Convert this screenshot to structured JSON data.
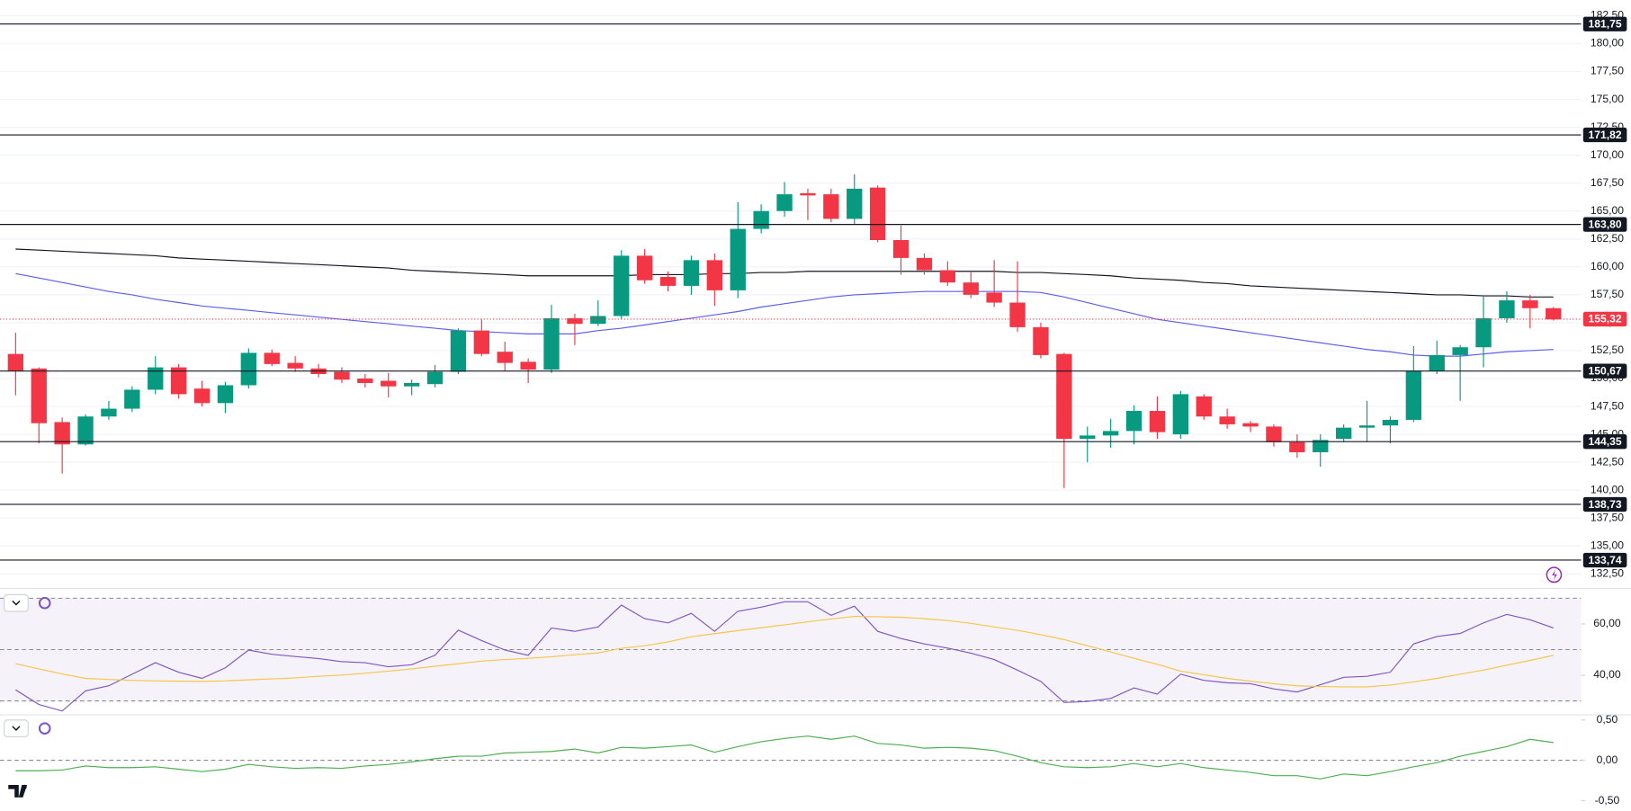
{
  "chart_data": [
    {
      "type": "candlestick",
      "up_color": "#089981",
      "down_color": "#f23645",
      "open": [
        152.2,
        150.9,
        146.1,
        144.1,
        146.6,
        147.3,
        149.0,
        151.0,
        149.1,
        147.8,
        149.4,
        152.3,
        151.4,
        150.9,
        150.6,
        150.0,
        149.8,
        149.3,
        149.5,
        150.6,
        154.3,
        152.4,
        151.5,
        150.8,
        155.4,
        154.9,
        155.6,
        161.0,
        159.1,
        158.3,
        160.6,
        157.9,
        163.4,
        165.0,
        166.6,
        166.5,
        164.3,
        167.1,
        162.4,
        160.8,
        159.7,
        158.6,
        157.7,
        156.8,
        154.6,
        152.2,
        144.6,
        144.9,
        145.3,
        147.1,
        145.0,
        148.4,
        146.6,
        146.0,
        145.7,
        144.3,
        143.4,
        144.6,
        145.6,
        145.8,
        146.3,
        150.7,
        152.1,
        152.8,
        155.4,
        157.0,
        156.3
      ],
      "high": [
        154.1,
        151.0,
        146.5,
        146.8,
        148.0,
        149.3,
        152.0,
        151.3,
        149.8,
        149.7,
        152.7,
        152.6,
        152.0,
        151.3,
        151.0,
        150.4,
        150.5,
        149.9,
        151.2,
        154.5,
        155.3,
        153.3,
        151.8,
        156.6,
        155.8,
        157.0,
        161.5,
        161.6,
        159.6,
        161.0,
        161.2,
        165.8,
        165.6,
        167.6,
        167.0,
        167.0,
        168.3,
        167.3,
        163.7,
        161.2,
        160.5,
        159.6,
        160.6,
        160.5,
        155.0,
        152.3,
        145.7,
        146.4,
        147.6,
        148.4,
        148.9,
        148.6,
        147.3,
        146.2,
        145.9,
        145.0,
        145.0,
        145.9,
        148.0,
        146.6,
        152.9,
        153.4,
        153.0,
        157.4,
        157.8,
        157.5,
        156.4
      ],
      "low": [
        148.5,
        144.2,
        141.5,
        144.0,
        146.3,
        147.0,
        148.6,
        148.2,
        147.5,
        146.9,
        149.1,
        151.1,
        150.6,
        150.1,
        149.6,
        149.2,
        148.3,
        148.5,
        149.2,
        150.4,
        152.0,
        150.7,
        149.6,
        150.5,
        153.0,
        154.7,
        155.3,
        158.5,
        157.8,
        157.5,
        156.5,
        157.2,
        163.0,
        164.5,
        164.2,
        164.0,
        163.8,
        162.2,
        159.3,
        159.3,
        158.3,
        157.2,
        156.4,
        154.2,
        151.8,
        140.2,
        142.5,
        143.8,
        144.1,
        144.6,
        144.6,
        146.3,
        145.5,
        145.2,
        143.9,
        142.9,
        142.1,
        144.3,
        144.3,
        144.2,
        146.1,
        150.4,
        148.0,
        151.0,
        155.0,
        154.5,
        155.2
      ],
      "close": [
        150.7,
        146.0,
        144.1,
        146.6,
        147.3,
        149.0,
        151.0,
        148.6,
        147.8,
        149.4,
        152.3,
        151.3,
        150.9,
        150.4,
        149.9,
        149.6,
        149.3,
        149.6,
        150.6,
        154.3,
        152.2,
        151.4,
        150.8,
        155.4,
        154.9,
        155.6,
        161.0,
        158.8,
        158.3,
        160.6,
        157.9,
        163.4,
        165.0,
        166.5,
        166.4,
        164.3,
        167.0,
        162.4,
        160.8,
        159.7,
        158.6,
        157.5,
        156.8,
        154.6,
        152.1,
        144.6,
        144.9,
        145.3,
        147.1,
        145.2,
        148.6,
        146.6,
        145.9,
        145.7,
        144.3,
        143.4,
        144.5,
        145.6,
        145.8,
        146.3,
        150.7,
        152.1,
        152.8,
        155.4,
        157.0,
        156.3,
        155.3
      ],
      "overlays": [
        {
          "color": "#131722",
          "values": [
            161.6,
            161.5,
            161.4,
            161.3,
            161.2,
            161.1,
            161.0,
            160.8,
            160.7,
            160.6,
            160.5,
            160.4,
            160.3,
            160.2,
            160.1,
            160.0,
            159.9,
            159.7,
            159.6,
            159.5,
            159.4,
            159.3,
            159.2,
            159.2,
            159.2,
            159.2,
            159.2,
            159.3,
            159.3,
            159.3,
            159.4,
            159.4,
            159.5,
            159.5,
            159.6,
            159.6,
            159.6,
            159.6,
            159.6,
            159.6,
            159.6,
            159.6,
            159.6,
            159.5,
            159.5,
            159.4,
            159.3,
            159.2,
            159.0,
            158.9,
            158.8,
            158.6,
            158.5,
            158.3,
            158.2,
            158.1,
            158.0,
            157.9,
            157.8,
            157.7,
            157.6,
            157.5,
            157.5,
            157.4,
            157.4,
            157.3,
            157.3
          ]
        },
        {
          "color": "#5c5ff0",
          "values": [
            159.4,
            159.0,
            158.6,
            158.2,
            157.8,
            157.5,
            157.1,
            156.8,
            156.5,
            156.3,
            156.1,
            155.9,
            155.7,
            155.5,
            155.3,
            155.1,
            154.9,
            154.7,
            154.5,
            154.3,
            154.2,
            154.1,
            154.0,
            154.0,
            154.0,
            154.3,
            154.5,
            154.8,
            155.1,
            155.4,
            155.7,
            156.0,
            156.4,
            156.7,
            157.0,
            157.3,
            157.5,
            157.6,
            157.7,
            157.8,
            157.8,
            157.8,
            157.8,
            157.8,
            157.7,
            157.3,
            156.8,
            156.3,
            155.8,
            155.3,
            155.0,
            154.7,
            154.4,
            154.1,
            153.8,
            153.5,
            153.2,
            152.9,
            152.6,
            152.4,
            152.1,
            152.0,
            152.0,
            152.2,
            152.4,
            152.5,
            152.6
          ]
        }
      ],
      "levels": [
        {
          "value": 181.75,
          "label": "181,75"
        },
        {
          "value": 171.82,
          "label": "171,82"
        },
        {
          "value": 163.8,
          "label": "163,80"
        },
        {
          "value": 150.67,
          "label": "150,67"
        },
        {
          "value": 144.35,
          "label": "144,35"
        },
        {
          "value": 138.73,
          "label": "138,73"
        },
        {
          "value": 133.74,
          "label": "133,74"
        }
      ],
      "last_price": {
        "value": 155.32,
        "label": "155,32"
      },
      "ylim": [
        131.3,
        183.9
      ],
      "yticks": [
        {
          "value": 132.5,
          "label": "132,50"
        },
        {
          "value": 135,
          "label": "135,00"
        },
        {
          "value": 137.5,
          "label": "137,50"
        },
        {
          "value": 140,
          "label": "140,00"
        },
        {
          "value": 142.5,
          "label": "142,50"
        },
        {
          "value": 145,
          "label": "145,00"
        },
        {
          "value": 147.5,
          "label": "147,50"
        },
        {
          "value": 150,
          "label": "150,00"
        },
        {
          "value": 152.5,
          "label": "152,50"
        },
        {
          "value": 155,
          "label": "155,00"
        },
        {
          "value": 157.5,
          "label": "157,50"
        },
        {
          "value": 160,
          "label": "160,00"
        },
        {
          "value": 162.5,
          "label": "162,50"
        },
        {
          "value": 165,
          "label": "165,00"
        },
        {
          "value": 167.5,
          "label": "167,50"
        },
        {
          "value": 170,
          "label": "170,00"
        },
        {
          "value": 172.5,
          "label": "172,50"
        },
        {
          "value": 175,
          "label": "175,00"
        },
        {
          "value": 177.5,
          "label": "177,50"
        },
        {
          "value": 180,
          "label": "180,00"
        },
        {
          "value": 182.5,
          "label": "182,50"
        }
      ],
      "grid": true
    },
    {
      "type": "line",
      "series": [
        {
          "color": "#7e57c2",
          "values": [
            34.3,
            28.6,
            26.1,
            33.9,
            35.9,
            40.4,
            44.9,
            41.2,
            38.8,
            42.9,
            49.8,
            48.2,
            47.3,
            46.5,
            45.3,
            44.9,
            43.3,
            44.1,
            47.8,
            57.6,
            53.5,
            49.8,
            47.8,
            58.4,
            57.1,
            58.8,
            67.3,
            62.0,
            60.4,
            64.1,
            57.1,
            64.9,
            66.5,
            68.6,
            68.6,
            63.3,
            66.9,
            57.1,
            54.3,
            52.2,
            50.6,
            48.6,
            46.1,
            42.0,
            37.6,
            29.4,
            29.8,
            31.0,
            35.1,
            32.7,
            40.4,
            38.0,
            37.1,
            36.7,
            34.7,
            33.5,
            36.3,
            39.2,
            39.6,
            41.2,
            52.2,
            55.1,
            56.3,
            60.4,
            63.7,
            61.6,
            58.4
          ]
        },
        {
          "color": "#f7c548",
          "values": [
            44.5,
            42.5,
            40.5,
            38.8,
            38.4,
            38.0,
            37.8,
            37.7,
            37.6,
            37.8,
            38.2,
            38.6,
            39.0,
            39.6,
            40.1,
            40.8,
            41.6,
            42.5,
            43.5,
            44.5,
            45.5,
            46.1,
            46.6,
            47.2,
            48.0,
            48.7,
            50.5,
            51.5,
            53.0,
            55.0,
            56.2,
            57.4,
            58.5,
            59.6,
            60.8,
            61.9,
            62.9,
            62.8,
            62.6,
            62.0,
            61.3,
            60.2,
            58.8,
            57.5,
            55.8,
            53.9,
            51.5,
            49.1,
            46.6,
            44.3,
            41.6,
            40.2,
            38.8,
            37.7,
            36.7,
            35.9,
            35.6,
            35.5,
            35.5,
            36.2,
            37.4,
            38.8,
            40.4,
            42.0,
            43.9,
            45.8,
            47.8
          ]
        }
      ],
      "bands": [
        70,
        50,
        30
      ],
      "ylim": [
        25,
        73
      ],
      "yticks": [
        {
          "value": 40,
          "label": "40,00"
        },
        {
          "value": 60,
          "label": "60,00"
        }
      ]
    },
    {
      "type": "line",
      "series": [
        {
          "color": "#4caf50",
          "values": [
            -0.13,
            -0.13,
            -0.12,
            -0.07,
            -0.09,
            -0.09,
            -0.08,
            -0.11,
            -0.14,
            -0.11,
            -0.05,
            -0.08,
            -0.1,
            -0.09,
            -0.1,
            -0.07,
            -0.05,
            -0.02,
            0.02,
            0.05,
            0.05,
            0.09,
            0.1,
            0.11,
            0.14,
            0.09,
            0.16,
            0.15,
            0.17,
            0.19,
            0.1,
            0.17,
            0.23,
            0.27,
            0.3,
            0.26,
            0.3,
            0.21,
            0.19,
            0.15,
            0.16,
            0.15,
            0.12,
            0.05,
            -0.03,
            -0.08,
            -0.09,
            -0.08,
            -0.04,
            -0.08,
            -0.04,
            -0.09,
            -0.12,
            -0.15,
            -0.19,
            -0.19,
            -0.23,
            -0.17,
            -0.19,
            -0.14,
            -0.08,
            -0.03,
            0.05,
            0.11,
            0.17,
            0.26,
            0.22
          ]
        }
      ],
      "bands": [
        0
      ],
      "ylim": [
        -0.55,
        0.55
      ],
      "yticks": [
        {
          "value": 0.5,
          "label": "0,50"
        },
        {
          "value": 0,
          "label": "0,00"
        },
        {
          "value": -0.5,
          "label": "-0,50"
        }
      ]
    }
  ]
}
